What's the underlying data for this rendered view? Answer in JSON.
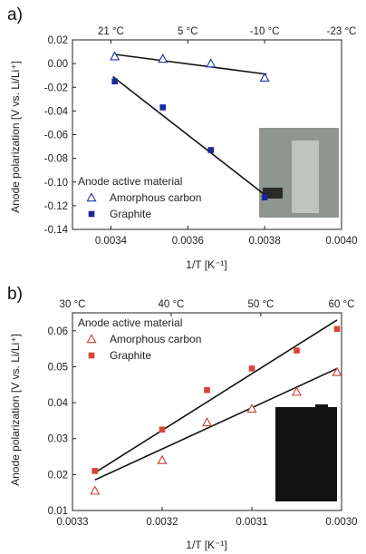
{
  "chart_data": [
    {
      "panel_label": "a)",
      "type": "scatter",
      "xlabel": "1/T [K⁻¹]",
      "ylabel": "Anode polarization [V vs. Li/Li⁺]",
      "xlim": [
        0.0033,
        0.004
      ],
      "ylim": [
        -0.14,
        0.02
      ],
      "x_reversed": false,
      "xticks": [
        0.0034,
        0.0036,
        0.0038,
        0.004
      ],
      "xtick_labels": [
        "0.0034",
        "0.0036",
        "0.0038",
        "0.0040"
      ],
      "yticks": [
        -0.14,
        -0.12,
        -0.1,
        -0.08,
        -0.06,
        -0.04,
        -0.02,
        0.0,
        0.02
      ],
      "ytick_labels": [
        "-0.14",
        "-0.12",
        "-0.10",
        "-0.08",
        "-0.06",
        "-0.04",
        "-0.02",
        "0.00",
        "0.02"
      ],
      "top_axis": {
        "labels": [
          "21 °C",
          "5 °C",
          "-10 °C",
          "-23 °C"
        ],
        "values": [
          0.0034,
          0.0036,
          0.0038,
          0.004
        ]
      },
      "grid": false,
      "legend": {
        "title": "Anode active material",
        "placement": "lower-left"
      },
      "inset_image": "pouch cell photo (light grey)",
      "series": [
        {
          "name": "Amorphous carbon",
          "marker": "open-triangle",
          "color": "#2233aa",
          "x": [
            0.00341,
            0.003535,
            0.00366,
            0.0038
          ],
          "y": [
            0.006,
            0.004,
            0.0,
            -0.012
          ],
          "fit": [
            [
              0.003405,
              0.008
            ],
            [
              0.003805,
              -0.009
            ]
          ]
        },
        {
          "name": "Graphite",
          "marker": "filled-square",
          "color": "#1a2a9e",
          "x": [
            0.00341,
            0.003535,
            0.00366,
            0.0038
          ],
          "y": [
            -0.015,
            -0.037,
            -0.073,
            -0.113
          ],
          "fit": [
            [
              0.003405,
              -0.011
            ],
            [
              0.003805,
              -0.112
            ]
          ]
        }
      ]
    },
    {
      "panel_label": "b)",
      "type": "scatter",
      "xlabel": "1/T [K⁻¹]",
      "ylabel": "Anode polarization [V vs. Li/Li⁺]",
      "xlim": [
        0.0033,
        0.003
      ],
      "ylim": [
        0.01,
        0.065
      ],
      "x_reversed": true,
      "xticks": [
        0.0033,
        0.0032,
        0.0031,
        0.003
      ],
      "xtick_labels": [
        "0.0033",
        "0.0032",
        "0.0031",
        "0.0030"
      ],
      "yticks": [
        0.01,
        0.02,
        0.03,
        0.04,
        0.05,
        0.06
      ],
      "ytick_labels": [
        "0.01",
        "0.02",
        "0.03",
        "0.04",
        "0.05",
        "0.06"
      ],
      "top_axis": {
        "labels": [
          "30 °C",
          "40 °C",
          "50 °C",
          "60 °C"
        ],
        "values": [
          0.0033,
          0.00319,
          0.00309,
          0.003
        ]
      },
      "grid": false,
      "legend": {
        "title": "Anode active material",
        "placement": "upper-left"
      },
      "inset_image": "pouch cell photo (black)",
      "series": [
        {
          "name": "Amorphous carbon",
          "marker": "open-triangle",
          "color": "#cc3a30",
          "x": [
            0.003275,
            0.0032,
            0.00315,
            0.0031,
            0.00305,
            0.003005
          ],
          "y": [
            0.0155,
            0.024,
            0.0345,
            0.0383,
            0.043,
            0.0485
          ],
          "fit": [
            [
              0.003275,
              0.0185
            ],
            [
              0.003005,
              0.0495
            ]
          ]
        },
        {
          "name": "Graphite",
          "marker": "filled-square",
          "color": "#d9453a",
          "x": [
            0.003275,
            0.0032,
            0.00315,
            0.0031,
            0.00305,
            0.003005
          ],
          "y": [
            0.021,
            0.0325,
            0.0435,
            0.0495,
            0.0545,
            0.0605
          ],
          "fit": [
            [
              0.003275,
              0.0205
            ],
            [
              0.003005,
              0.063
            ]
          ]
        }
      ]
    }
  ]
}
